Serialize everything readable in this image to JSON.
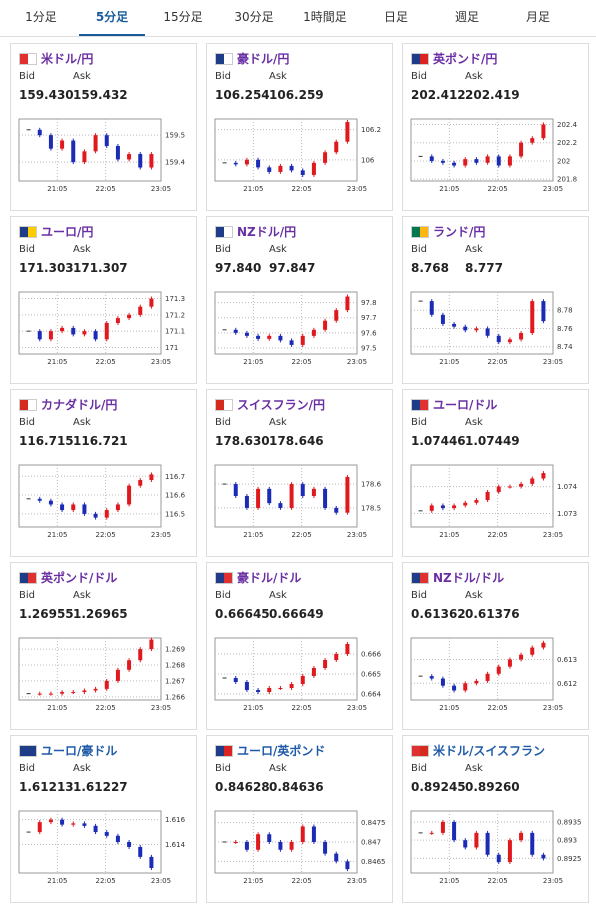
{
  "tabs": [
    "1分足",
    "5分足",
    "15分足",
    "30分足",
    "1時間足",
    "日足",
    "週足",
    "月足"
  ],
  "cards": [
    {
      "title": "米ドル/円",
      "bid_label": "Bid",
      "ask_label": "Ask",
      "bid": "159.430",
      "ask": "159.432",
      "chart": {
        "type": "candlestick",
        "values": [
          159.52,
          159.5,
          159.45,
          159.48,
          159.4,
          159.44,
          159.5,
          159.46,
          159.41,
          159.43,
          159.38,
          159.43
        ],
        "ylim": [
          159.33,
          159.56
        ],
        "yticks": [
          159.4,
          159.5
        ],
        "x_labels": [
          "21:05",
          "22:05",
          "23:05"
        ]
      }
    },
    {
      "title": "豪ドル/円",
      "bid_label": "Bid",
      "ask_label": "Ask",
      "bid": "106.254",
      "ask": "106.259",
      "chart": {
        "type": "candlestick",
        "values": [
          105.98,
          105.97,
          106.0,
          105.95,
          105.92,
          105.96,
          105.93,
          105.9,
          105.98,
          106.05,
          106.12,
          106.25
        ],
        "ylim": [
          105.86,
          106.27
        ],
        "yticks": [
          106,
          106.2
        ],
        "x_labels": [
          "21:05",
          "22:05",
          "23:05"
        ]
      }
    },
    {
      "title": "英ポンド/円",
      "bid_label": "Bid",
      "ask_label": "Ask",
      "bid": "202.412",
      "ask": "202.419",
      "chart": {
        "type": "candlestick",
        "values": [
          202.05,
          202.0,
          201.98,
          201.95,
          202.02,
          201.98,
          202.05,
          201.95,
          202.05,
          202.2,
          202.25,
          202.4
        ],
        "ylim": [
          201.78,
          202.46
        ],
        "yticks": [
          201.8,
          202,
          202.2,
          202.4
        ],
        "x_labels": [
          "21:05",
          "22:05",
          "23:05"
        ]
      }
    },
    {
      "title": "ユーロ/円",
      "bid_label": "Bid",
      "ask_label": "Ask",
      "bid": "171.303",
      "ask": "171.307",
      "chart": {
        "type": "candlestick",
        "values": [
          171.1,
          171.05,
          171.1,
          171.12,
          171.08,
          171.1,
          171.05,
          171.15,
          171.18,
          171.2,
          171.25,
          171.3
        ],
        "ylim": [
          170.96,
          171.34
        ],
        "yticks": [
          171,
          171.1,
          171.2,
          171.3
        ],
        "x_labels": [
          "21:05",
          "22:05",
          "23:05"
        ]
      }
    },
    {
      "title": "NZドル/円",
      "bid_label": "Bid",
      "ask_label": "Ask",
      "bid": "97.840",
      "ask": "97.847",
      "chart": {
        "type": "candlestick",
        "values": [
          97.62,
          97.6,
          97.58,
          97.56,
          97.58,
          97.55,
          97.52,
          97.58,
          97.62,
          97.68,
          97.75,
          97.84
        ],
        "ylim": [
          97.46,
          97.87
        ],
        "yticks": [
          97.5,
          97.6,
          97.7,
          97.8
        ],
        "x_labels": [
          "21:05",
          "22:05",
          "23:05"
        ]
      }
    },
    {
      "title": "ランド/円",
      "bid_label": "Bid",
      "ask_label": "Ask",
      "bid": "8.768",
      "ask": "8.777",
      "chart": {
        "type": "candlestick",
        "values": [
          8.79,
          8.775,
          8.765,
          8.762,
          8.758,
          8.76,
          8.752,
          8.745,
          8.748,
          8.755,
          8.79,
          8.768
        ],
        "ylim": [
          8.732,
          8.8
        ],
        "yticks": [
          8.74,
          8.76,
          8.78
        ],
        "x_labels": [
          "21:05",
          "22:05",
          "23:05"
        ]
      }
    },
    {
      "title": "カナダドル/円",
      "bid_label": "Bid",
      "ask_label": "Ask",
      "bid": "116.715",
      "ask": "116.721",
      "chart": {
        "type": "candlestick",
        "values": [
          116.58,
          116.57,
          116.55,
          116.52,
          116.55,
          116.5,
          116.48,
          116.52,
          116.55,
          116.65,
          116.68,
          116.71
        ],
        "ylim": [
          116.43,
          116.76
        ],
        "yticks": [
          116.5,
          116.6,
          116.7
        ],
        "x_labels": [
          "21:05",
          "22:05",
          "23:05"
        ]
      }
    },
    {
      "title": "スイスフラン/円",
      "bid_label": "Bid",
      "ask_label": "Ask",
      "bid": "178.630",
      "ask": "178.646",
      "chart": {
        "type": "candlestick",
        "values": [
          178.6,
          178.55,
          178.5,
          178.58,
          178.52,
          178.5,
          178.6,
          178.55,
          178.58,
          178.5,
          178.48,
          178.63
        ],
        "ylim": [
          178.42,
          178.68
        ],
        "yticks": [
          178.5,
          178.6
        ],
        "x_labels": [
          "21:05",
          "22:05",
          "23:05"
        ]
      }
    },
    {
      "title": "ユーロ/ドル",
      "bid_label": "Bid",
      "ask_label": "Ask",
      "bid": "1.07446",
      "ask": "1.07449",
      "chart": {
        "type": "candlestick",
        "values": [
          1.0731,
          1.0733,
          1.0732,
          1.0733,
          1.0734,
          1.0735,
          1.0738,
          1.074,
          1.074,
          1.0741,
          1.0743,
          1.0745
        ],
        "ylim": [
          1.0725,
          1.0748
        ],
        "yticks": [
          1.073,
          1.074
        ],
        "x_labels": [
          "21:05",
          "22:05",
          "23:05"
        ]
      }
    },
    {
      "title": "英ポンド/ドル",
      "bid_label": "Bid",
      "ask_label": "Ask",
      "bid": "1.26955",
      "ask": "1.26965",
      "chart": {
        "type": "candlestick",
        "values": [
          1.2662,
          1.2662,
          1.2662,
          1.2663,
          1.2663,
          1.2664,
          1.2665,
          1.267,
          1.2677,
          1.2683,
          1.269,
          1.2696
        ],
        "ylim": [
          1.2658,
          1.2697
        ],
        "yticks": [
          1.266,
          1.267,
          1.268,
          1.269
        ],
        "x_labels": [
          "21:05",
          "22:05",
          "23:05"
        ]
      }
    },
    {
      "title": "豪ドル/ドル",
      "bid_label": "Bid",
      "ask_label": "Ask",
      "bid": "0.66645",
      "ask": "0.66649",
      "chart": {
        "type": "candlestick",
        "values": [
          0.6648,
          0.6646,
          0.6642,
          0.6641,
          0.6643,
          0.6643,
          0.6645,
          0.6649,
          0.6653,
          0.6657,
          0.666,
          0.6665
        ],
        "ylim": [
          0.6637,
          0.6668
        ],
        "yticks": [
          0.664,
          0.665,
          0.666
        ],
        "x_labels": [
          "21:05",
          "22:05",
          "23:05"
        ]
      }
    },
    {
      "title": "NZドル/ドル",
      "bid_label": "Bid",
      "ask_label": "Ask",
      "bid": "0.61362",
      "ask": "0.61376",
      "chart": {
        "type": "candlestick",
        "values": [
          0.6123,
          0.6122,
          0.6119,
          0.6117,
          0.612,
          0.6121,
          0.6124,
          0.6127,
          0.613,
          0.6132,
          0.6135,
          0.6137
        ],
        "ylim": [
          0.6113,
          0.6139
        ],
        "yticks": [
          0.612,
          0.613
        ],
        "x_labels": [
          "21:05",
          "22:05",
          "23:05"
        ]
      }
    },
    {
      "title": "ユーロ/豪ドル",
      "bid_label": "Bid",
      "ask_label": "Ask",
      "bid": "1.61213",
      "ask": "1.61227",
      "chart": {
        "type": "candlestick",
        "values": [
          1.615,
          1.6158,
          1.616,
          1.6156,
          1.6157,
          1.6155,
          1.615,
          1.6147,
          1.6142,
          1.6138,
          1.613,
          1.6121
        ],
        "ylim": [
          1.6117,
          1.6167
        ],
        "yticks": [
          1.614,
          1.616
        ],
        "x_labels": [
          "21:05",
          "22:05",
          "23:05"
        ]
      }
    },
    {
      "title": "ユーロ/英ポンド",
      "bid_label": "Bid",
      "ask_label": "Ask",
      "bid": "0.84628",
      "ask": "0.84636",
      "chart": {
        "type": "candlestick",
        "values": [
          0.847,
          0.847,
          0.8468,
          0.8472,
          0.847,
          0.8468,
          0.847,
          0.8474,
          0.847,
          0.8467,
          0.8465,
          0.8463
        ],
        "ylim": [
          0.8462,
          0.8478
        ],
        "yticks": [
          0.8465,
          0.847,
          0.8475
        ],
        "x_labels": [
          "21:05",
          "22:05",
          "23:05"
        ]
      }
    },
    {
      "title": "米ドル/スイスフラン",
      "bid_label": "Bid",
      "ask_label": "Ask",
      "bid": "0.89245",
      "ask": "0.89260",
      "chart": {
        "type": "candlestick",
        "values": [
          0.8932,
          0.8932,
          0.8935,
          0.893,
          0.8928,
          0.8932,
          0.8926,
          0.8924,
          0.893,
          0.8932,
          0.8926,
          0.8925
        ],
        "ylim": [
          0.8921,
          0.8938
        ],
        "yticks": [
          0.8925,
          0.893,
          0.8935
        ],
        "x_labels": [
          "21:05",
          "22:05",
          "23:05"
        ]
      }
    }
  ]
}
